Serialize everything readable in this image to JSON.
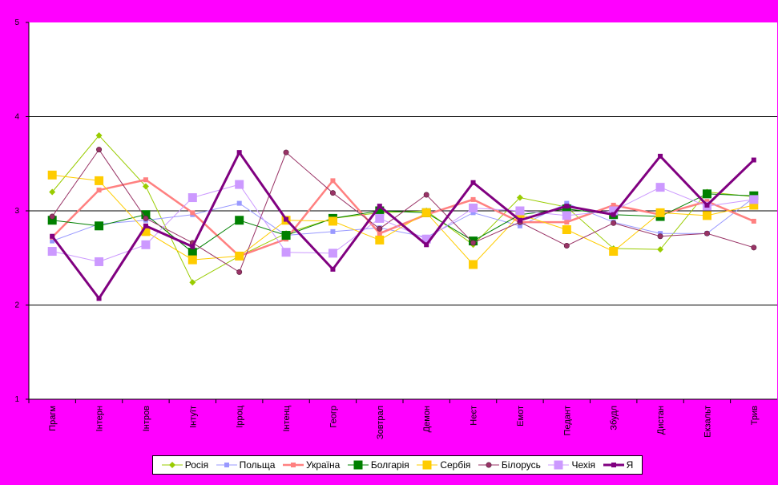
{
  "chart_data": {
    "type": "line",
    "categories": [
      "Прагм",
      "Інтерн",
      "Інтров",
      "Інтуїт",
      "Ірроц",
      "Інтенц",
      "Геогр",
      "Зовтрал",
      "Демон",
      "Неєт",
      "Емот",
      "Педант",
      "Збудл",
      "Дистан",
      "Екзальт",
      "Трив"
    ],
    "ylim": [
      1,
      5
    ],
    "yticks": [
      1,
      2,
      3,
      4,
      5
    ],
    "grid": "horizontal",
    "legend_position": "bottom",
    "series": [
      {
        "name": "Росія",
        "color": "#99cc00",
        "width": 1,
        "marker": "diamond",
        "values": [
          3.2,
          3.8,
          3.26,
          2.24,
          2.52,
          2.76,
          2.92,
          2.98,
          3.0,
          2.64,
          3.14,
          3.04,
          2.6,
          2.59,
          3.2,
          3.15
        ]
      },
      {
        "name": "Польща",
        "color": "#9999ff",
        "width": 1,
        "marker": "square-small",
        "values": [
          2.68,
          2.86,
          2.9,
          2.96,
          3.08,
          2.74,
          2.78,
          2.82,
          2.72,
          2.98,
          2.84,
          3.08,
          2.88,
          2.76,
          2.76,
          3.14
        ]
      },
      {
        "name": "Україна",
        "color": "#ff8080",
        "width": 2.5,
        "marker": "square-small",
        "values": [
          2.72,
          3.22,
          3.33,
          2.98,
          2.52,
          2.7,
          3.32,
          2.76,
          2.96,
          3.12,
          2.88,
          2.88,
          3.06,
          2.96,
          3.1,
          2.89
        ]
      },
      {
        "name": "Болгарія",
        "color": "#008000",
        "width": 1,
        "marker": "square-big",
        "values": [
          2.9,
          2.84,
          2.96,
          2.56,
          2.9,
          2.74,
          2.92,
          3.0,
          2.98,
          2.68,
          2.96,
          3.02,
          2.96,
          2.94,
          3.18,
          3.16
        ]
      },
      {
        "name": "Сербія",
        "color": "#ffcc00",
        "width": 1,
        "marker": "square-big",
        "values": [
          3.38,
          3.32,
          2.78,
          2.48,
          2.52,
          2.9,
          2.89,
          2.69,
          2.98,
          2.43,
          2.96,
          2.8,
          2.57,
          2.98,
          2.95,
          3.06
        ]
      },
      {
        "name": "Білорусь",
        "color": "#993366",
        "width": 1,
        "marker": "circle",
        "values": [
          2.94,
          3.65,
          2.92,
          2.66,
          2.35,
          3.62,
          3.19,
          2.81,
          3.17,
          2.66,
          2.88,
          2.63,
          2.87,
          2.73,
          2.76,
          2.61
        ]
      },
      {
        "name": "Чехія",
        "color": "#cc99ff",
        "width": 1,
        "marker": "square-big",
        "values": [
          2.57,
          2.46,
          2.64,
          3.14,
          3.28,
          2.56,
          2.55,
          2.92,
          2.7,
          3.03,
          3.0,
          2.95,
          3.0,
          3.25,
          3.05,
          3.12
        ]
      },
      {
        "name": "Я",
        "color": "#800080",
        "width": 3,
        "marker": "square-small",
        "values": [
          2.73,
          2.07,
          2.84,
          2.62,
          3.62,
          2.91,
          2.38,
          3.05,
          2.64,
          3.3,
          2.9,
          3.05,
          2.96,
          3.58,
          3.06,
          3.54
        ]
      }
    ]
  }
}
